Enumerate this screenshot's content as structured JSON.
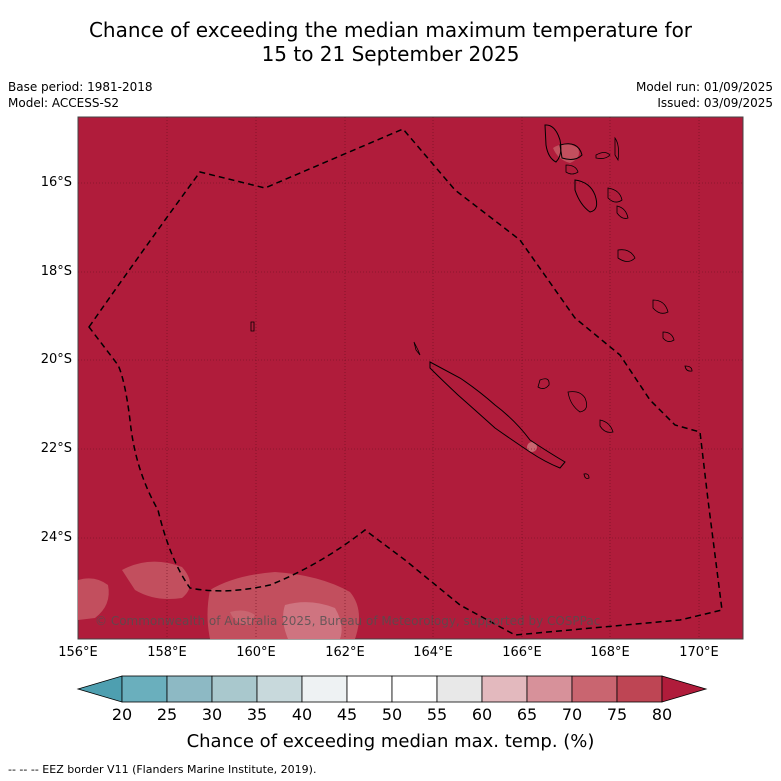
{
  "title_line1": "Chance of exceeding the median maximum temperature for",
  "title_line2": "15 to 21 September 2025",
  "base_period": "Base period: 1981-2018",
  "model": "Model: ACCESS-S2",
  "model_run": "Model run: 01/09/2025",
  "issued": "Issued: 03/09/2025",
  "lat_labels": [
    "16°S",
    "18°S",
    "20°S",
    "22°S",
    "24°S"
  ],
  "lon_labels": [
    "156°E",
    "158°E",
    "160°E",
    "162°E",
    "164°E",
    "166°E",
    "168°E",
    "170°E"
  ],
  "colorbar": {
    "ticks": [
      "20",
      "25",
      "30",
      "35",
      "40",
      "45",
      "50",
      "55",
      "60",
      "65",
      "70",
      "75",
      "80"
    ],
    "colors": [
      "#4e9fb0",
      "#6aafbd",
      "#8db9c4",
      "#a9c8cd",
      "#c8d9dc",
      "#eef2f3",
      "#ffffff",
      "#ffffff",
      "#e8e8e8",
      "#e3b9be",
      "#d7919a",
      "#c96570",
      "#be4554",
      "#b01c3b"
    ],
    "label": "Chance of exceeding median max. temp. (%)"
  },
  "copyright": "© Commonwealth of Australia 2025, Bureau of Meteorology, supported by COSPPac",
  "eez_note": "--  --  -- EEZ border V11 (Flanders Marine Institute, 2019).",
  "map_fill_color": "#b01c3b"
}
